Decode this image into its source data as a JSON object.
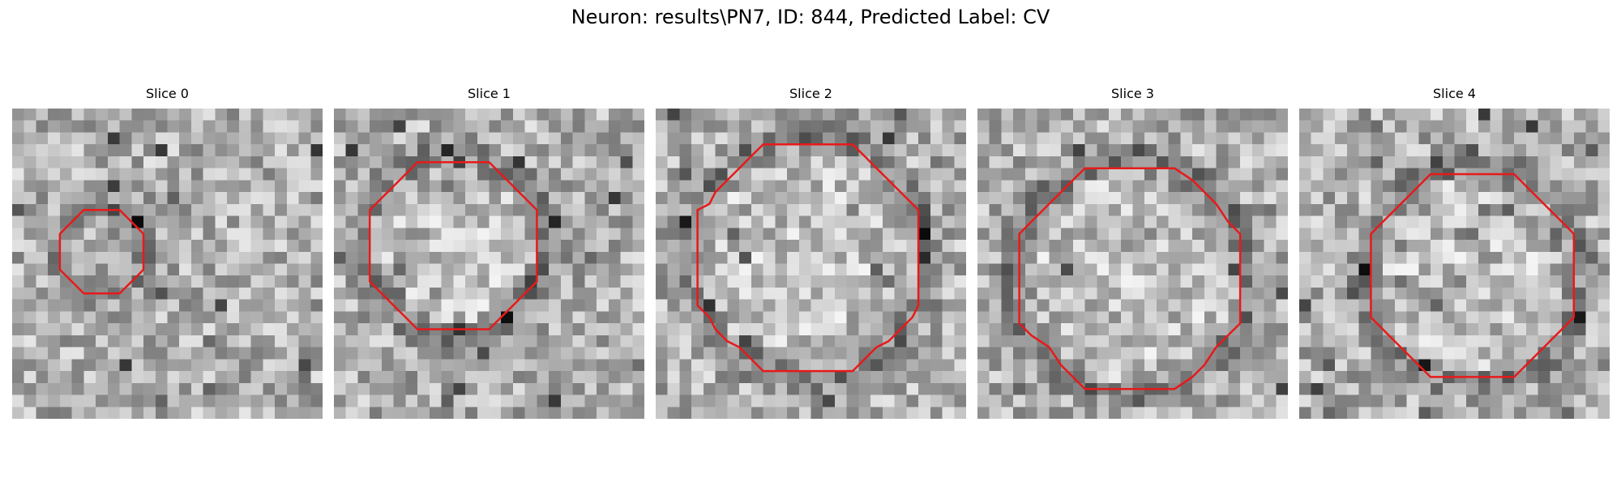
{
  "figure": {
    "title": "Neuron: results\\PN7, ID: 844, Predicted Label: CV"
  },
  "panels": [
    {
      "label": "Slice 0",
      "image_description": "Grayscale pixelated microscopy patch with small red octagonal contour"
    },
    {
      "label": "Slice 1",
      "image_description": "Grayscale pixelated microscopy patch with medium red octagonal contour"
    },
    {
      "label": "Slice 2",
      "image_description": "Grayscale pixelated microscopy patch with large red octagonal contour"
    },
    {
      "label": "Slice 3",
      "image_description": "Grayscale pixelated microscopy patch with large red octagonal contour"
    },
    {
      "label": "Slice 4",
      "image_description": "Grayscale pixelated microscopy patch with large red octagonal contour"
    }
  ],
  "colors": {
    "contour": "#e8191a",
    "background": "#ffffff"
  }
}
